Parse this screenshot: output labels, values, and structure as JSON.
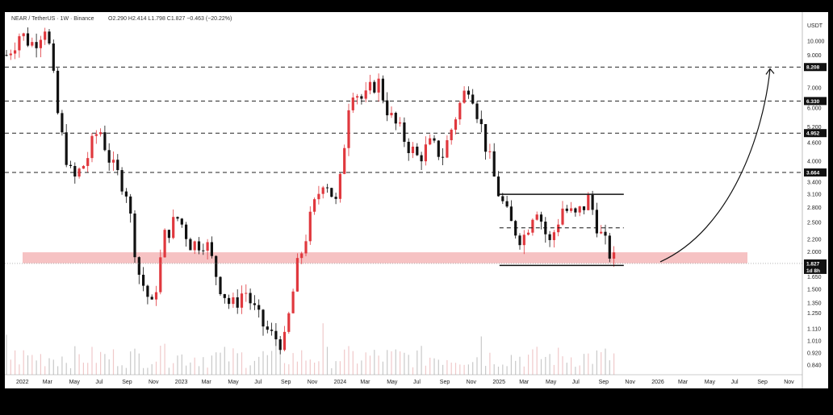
{
  "header": {
    "symbol": "NEAR / TetherUS · 1W · Binance",
    "ohlc": "O2.290 H2.414 L1.798 C1.827 −0.463 (−20.22%)"
  },
  "axis": {
    "unit": "USDT",
    "current_price": "1.827",
    "current_sub": "1d 8h"
  },
  "colors": {
    "up": "#e0383e",
    "down": "#111111",
    "zone": "#f5b7b9",
    "volume": "#d9c3c3"
  },
  "chart_data": {
    "type": "candlestick",
    "yscale": "log",
    "ylim": [
      0.78,
      12.5
    ],
    "y_ticks": [
      "10.000",
      "9.000",
      "7.000",
      "6.000",
      "5.200",
      "4.600",
      "4.000",
      "3.400",
      "3.100",
      "2.800",
      "2.500",
      "2.200",
      "2.000",
      "1.650",
      "1.500",
      "1.350",
      "1.250",
      "1.110",
      "1.010",
      "0.920",
      "0.840"
    ],
    "x_labels": [
      "2022",
      "Mar",
      "May",
      "Jul",
      "Sep",
      "Nov",
      "2023",
      "Mar",
      "May",
      "Jul",
      "Sep",
      "Nov",
      "2024",
      "Mar",
      "May",
      "Jul",
      "Sep",
      "Nov",
      "2025",
      "Mar",
      "May",
      "Jul",
      "Sep",
      "Nov",
      "2026",
      "Mar",
      "May",
      "Jul",
      "Sep",
      "Nov"
    ],
    "levels": [
      {
        "value": 8.208,
        "label": "8.208"
      },
      {
        "value": 6.33,
        "label": "6.330"
      },
      {
        "value": 4.952,
        "label": "4.952"
      },
      {
        "value": 3.664,
        "label": "3.664"
      }
    ],
    "support_zone": [
      1.83,
      1.99
    ],
    "range": {
      "top": 3.1,
      "mid": 2.4,
      "bottom": 1.8,
      "start": "2025-02",
      "end": "2025-12"
    },
    "projection": {
      "from": 1.85,
      "to": 8.2
    },
    "close_path": [
      [
        "2022-01",
        9.0
      ],
      [
        "2022-02",
        10.6
      ],
      [
        "2022-03",
        9.8
      ],
      [
        "2022-04",
        11.5
      ],
      [
        "2022-05",
        5.2
      ],
      [
        "2022-06",
        3.4
      ],
      [
        "2022-07",
        4.0
      ],
      [
        "2022-08",
        5.2
      ],
      [
        "2022-09",
        3.8
      ],
      [
        "2022-10",
        3.3
      ],
      [
        "2022-11",
        1.7
      ],
      [
        "2022-12",
        1.3
      ],
      [
        "2023-01",
        2.3
      ],
      [
        "2023-02",
        2.6
      ],
      [
        "2023-03",
        2.1
      ],
      [
        "2023-04",
        2.2
      ],
      [
        "2023-05",
        1.6
      ],
      [
        "2023-06",
        1.3
      ],
      [
        "2023-07",
        1.5
      ],
      [
        "2023-08",
        1.2
      ],
      [
        "2023-09",
        1.05
      ],
      [
        "2023-10",
        1.0
      ],
      [
        "2023-11",
        1.8
      ],
      [
        "2023-12",
        2.6
      ],
      [
        "2024-01",
        3.6
      ],
      [
        "2024-02",
        2.8
      ],
      [
        "2024-03",
        7.2
      ],
      [
        "2024-04",
        6.3
      ],
      [
        "2024-05",
        7.5
      ],
      [
        "2024-06",
        5.6
      ],
      [
        "2024-07",
        4.8
      ],
      [
        "2024-08",
        4.1
      ],
      [
        "2024-09",
        4.5
      ],
      [
        "2024-10",
        4.2
      ],
      [
        "2024-11",
        5.8
      ],
      [
        "2024-12",
        7.4
      ],
      [
        "2025-01",
        4.9
      ],
      [
        "2025-02",
        3.3
      ],
      [
        "2025-03",
        2.5
      ],
      [
        "2025-04",
        2.2
      ],
      [
        "2025-05",
        2.9
      ],
      [
        "2025-06",
        2.1
      ],
      [
        "2025-07",
        2.8
      ],
      [
        "2025-08",
        2.6
      ],
      [
        "2025-09",
        3.0
      ],
      [
        "2025-10",
        2.2
      ],
      [
        "2025-11",
        1.83
      ]
    ]
  }
}
